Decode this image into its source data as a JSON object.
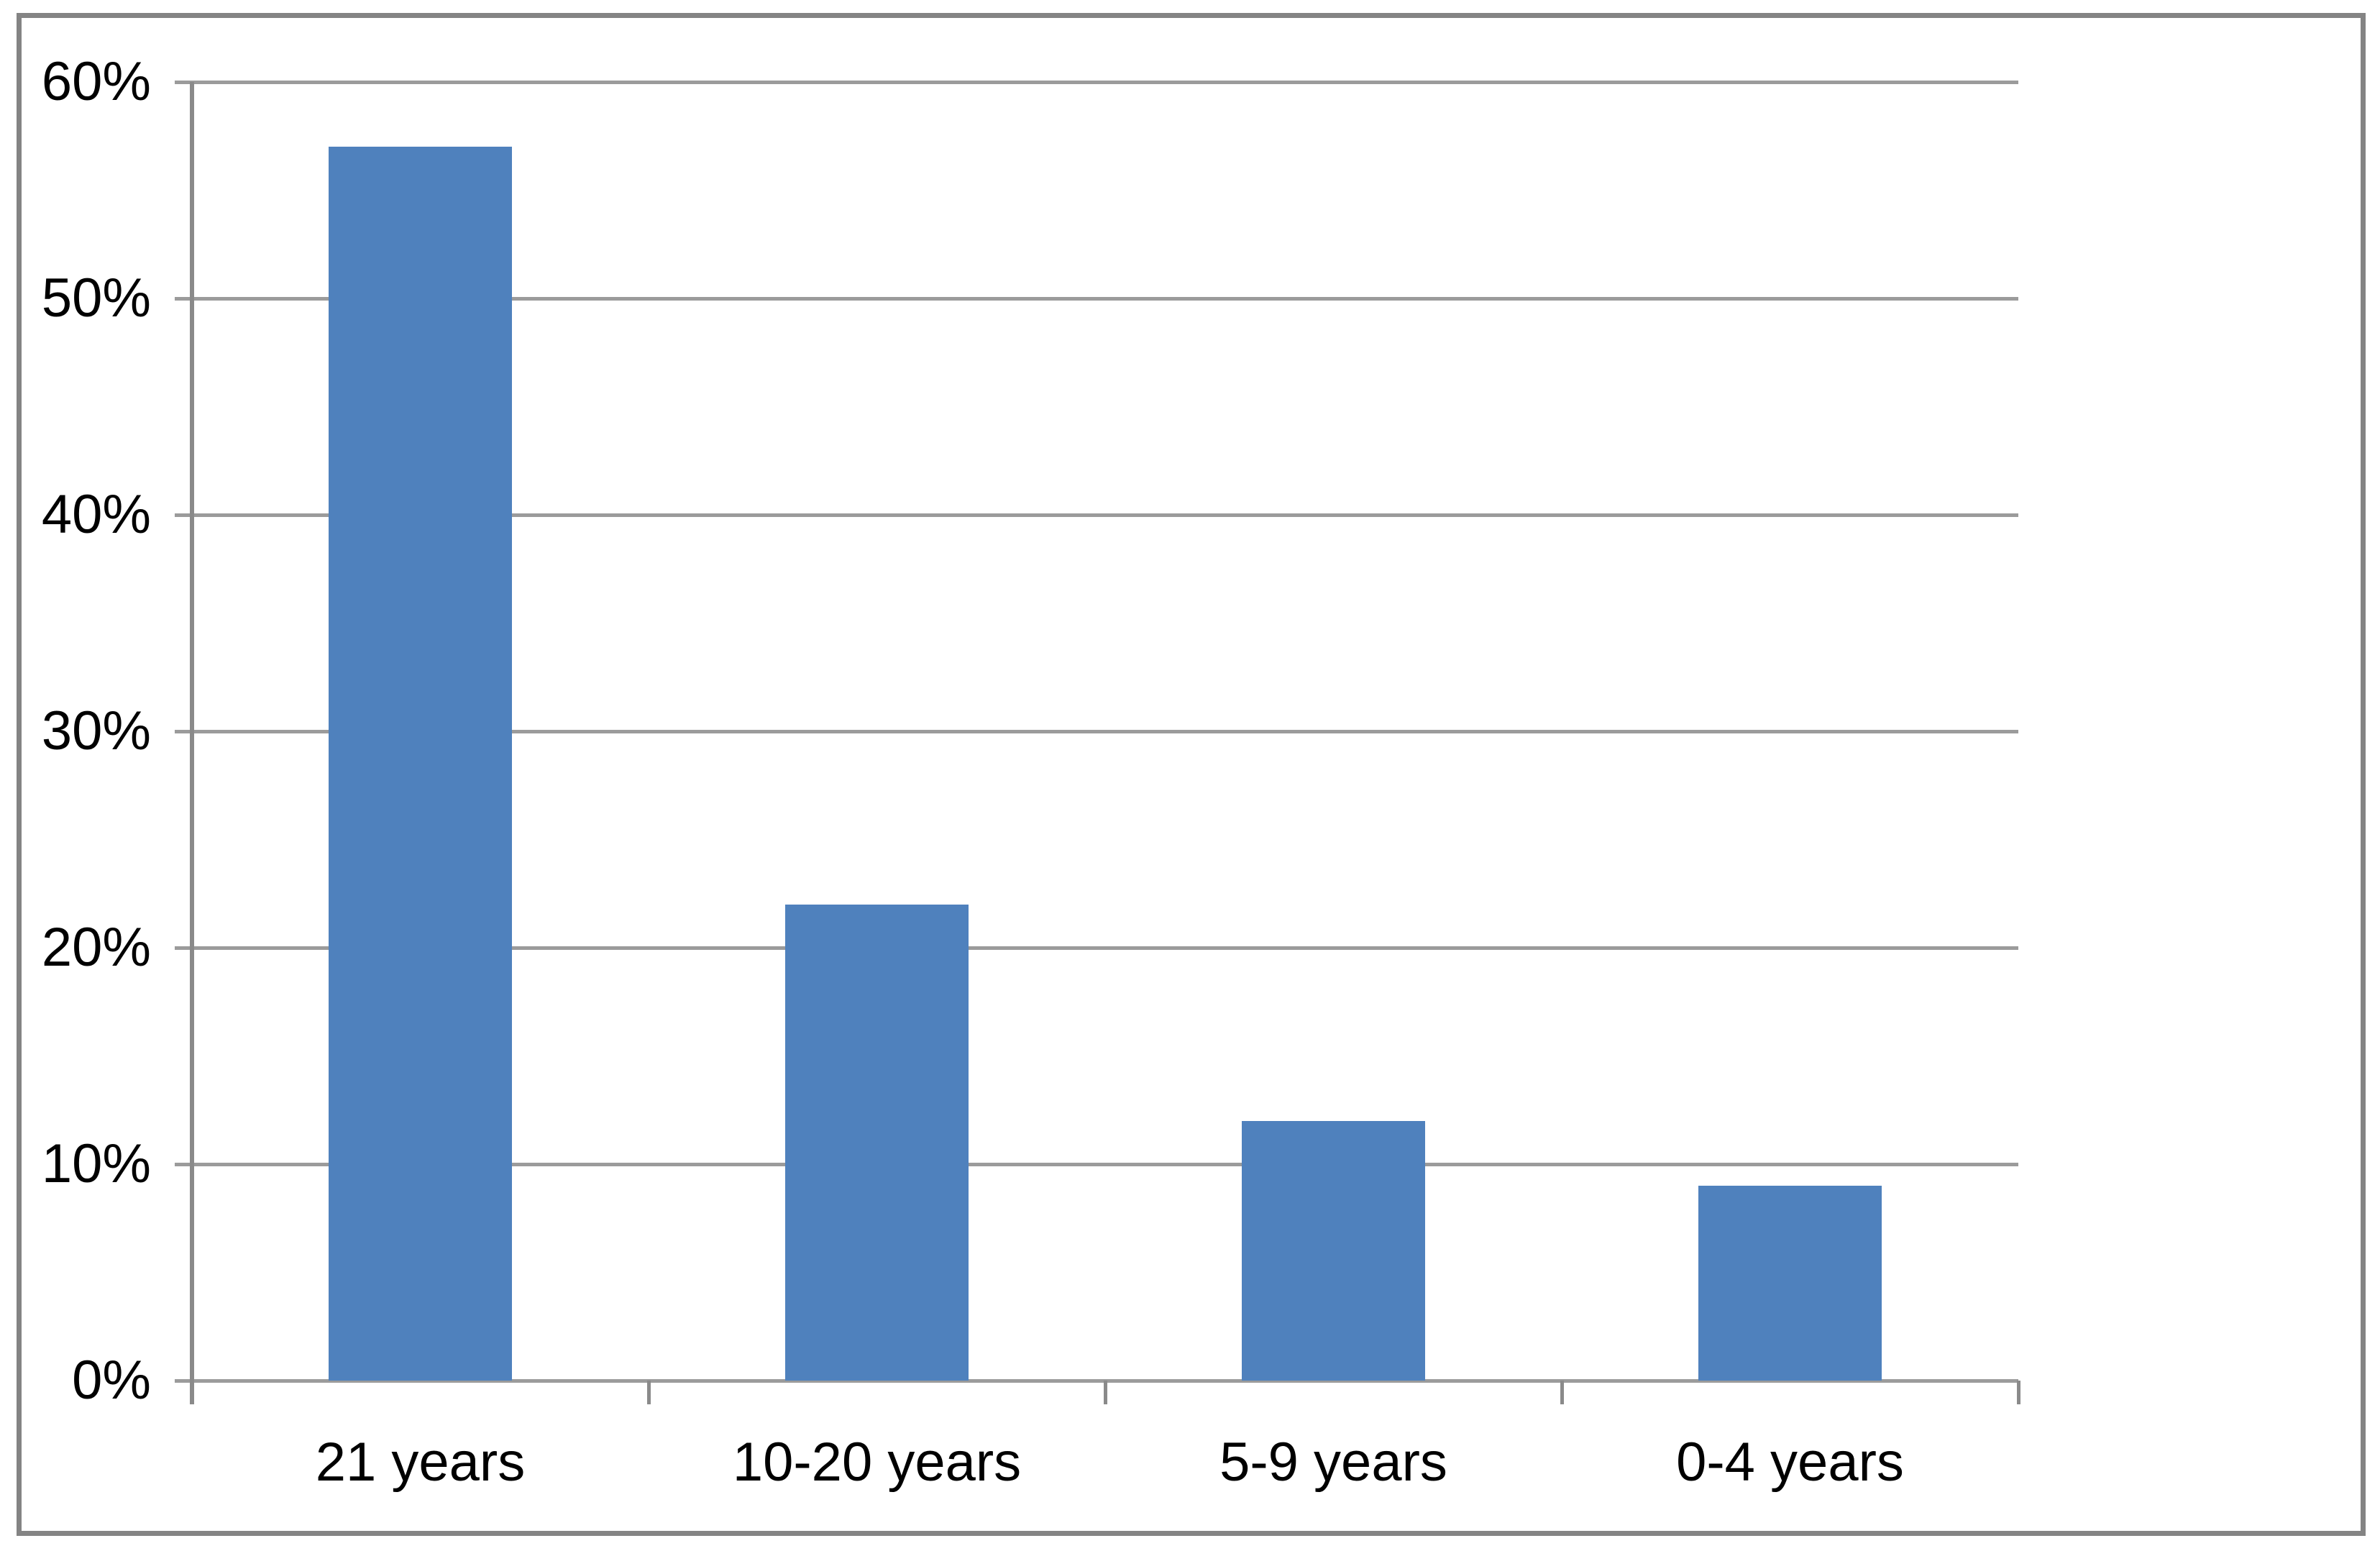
{
  "chart_data": {
    "type": "bar",
    "title": "",
    "xlabel": "",
    "ylabel": "",
    "categories": [
      "21 years",
      "10-20 years",
      "5-9 years",
      "0-4 years"
    ],
    "values": [
      57,
      22,
      12,
      9
    ],
    "value_unit": "%",
    "ylim": [
      0,
      60
    ],
    "yticks": [
      0,
      10,
      20,
      30,
      40,
      50,
      60
    ],
    "ytick_labels": [
      "0%",
      "10%",
      "20%",
      "30%",
      "40%",
      "50%",
      "60%"
    ],
    "grid": "horizontal",
    "legend": "none",
    "colors": {
      "bar": "#4F81BD",
      "gridline": "#9B9B9B",
      "axis": "#8A8A8A",
      "frame": "#848484",
      "text": "#000000",
      "background": "#FFFFFF"
    }
  }
}
